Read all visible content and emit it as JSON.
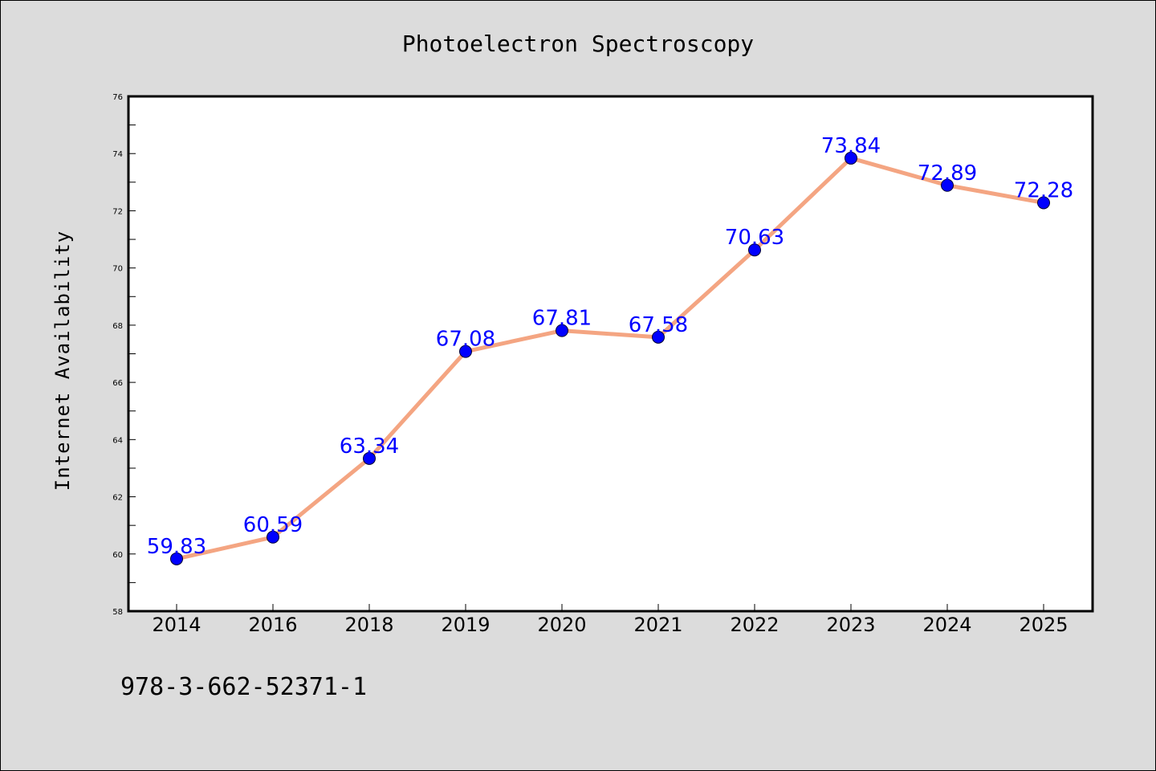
{
  "chart_data": {
    "type": "line",
    "title": "Photoelectron Spectroscopy",
    "xlabel": "",
    "ylabel": "Internet Availability",
    "categories": [
      "2014",
      "2016",
      "2018",
      "2019",
      "2020",
      "2021",
      "2022",
      "2023",
      "2024",
      "2025"
    ],
    "series": [
      {
        "values": [
          59.83,
          60.59,
          63.34,
          67.08,
          67.81,
          67.58,
          70.63,
          73.84,
          72.89,
          72.28
        ],
        "labels": [
          "59.83",
          "60.59",
          "63.34",
          "67.08",
          "67.81",
          "67.58",
          "70.63",
          "73.84",
          "72.89",
          "72.28"
        ]
      }
    ],
    "ylim": [
      58,
      76
    ],
    "yticks": [
      "58",
      "60",
      "62",
      "64",
      "66",
      "68",
      "70",
      "72",
      "74",
      "76"
    ],
    "grid": false,
    "legend": "none"
  },
  "footnote": "978-3-662-52371-1",
  "colors": {
    "background": "#dcdcdc",
    "plot_area": "#ffffff",
    "line": "#f4a582",
    "marker": "#0000ff",
    "data_label": "#0000ff"
  }
}
